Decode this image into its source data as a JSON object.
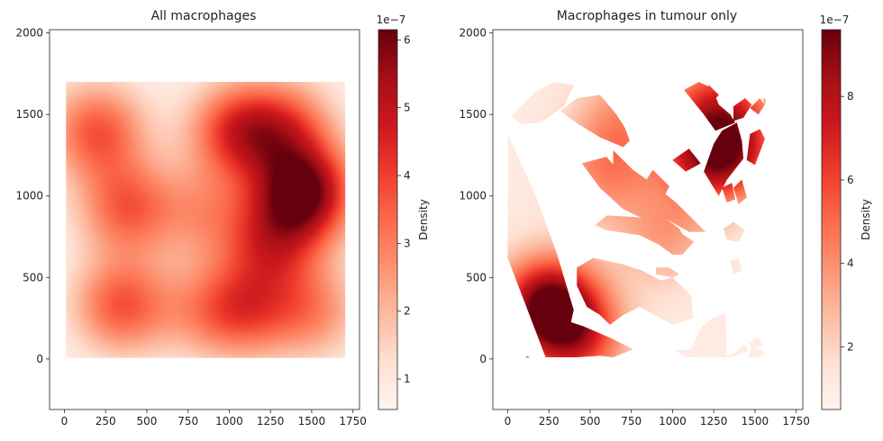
{
  "colors": {
    "colormap": [
      "#fff5f0",
      "#fee0d2",
      "#fcbba1",
      "#fc9272",
      "#fb6a4a",
      "#ef3b2c",
      "#cb181d",
      "#a50f15",
      "#67000d"
    ],
    "frame": "#222222"
  },
  "chart_data": [
    {
      "type": "heatmap",
      "title": "All macrophages",
      "xlim": [
        -90,
        1790
      ],
      "ylim": [
        -310,
        2020
      ],
      "x_ticks": [
        {
          "value": 0,
          "label": "0"
        },
        {
          "value": 250,
          "label": "250"
        },
        {
          "value": 500,
          "label": "500"
        },
        {
          "value": 750,
          "label": "750"
        },
        {
          "value": 1000,
          "label": "1000"
        },
        {
          "value": 1250,
          "label": "1250"
        },
        {
          "value": 1500,
          "label": "1500"
        },
        {
          "value": 1750,
          "label": "1750"
        }
      ],
      "y_ticks": [
        {
          "value": 0,
          "label": "0"
        },
        {
          "value": 500,
          "label": "500"
        },
        {
          "value": 1000,
          "label": "1000"
        },
        {
          "value": 1500,
          "label": "1500"
        },
        {
          "value": 2000,
          "label": "2000"
        }
      ],
      "extent": {
        "x": [
          10,
          1700
        ],
        "y": [
          10,
          1700
        ]
      },
      "mask": "full",
      "density_base": 0.6,
      "hotspots": [
        {
          "x": 1450,
          "y": 1020,
          "value": 5.4
        },
        {
          "x": 1050,
          "y": 1400,
          "value": 3.4
        },
        {
          "x": 1350,
          "y": 1420,
          "value": 2.6
        },
        {
          "x": 1250,
          "y": 700,
          "value": 2.8
        },
        {
          "x": 1100,
          "y": 300,
          "value": 2.5
        },
        {
          "x": 1500,
          "y": 300,
          "value": 2.1
        },
        {
          "x": 200,
          "y": 1400,
          "value": 3.0
        },
        {
          "x": 380,
          "y": 930,
          "value": 2.8
        },
        {
          "x": 350,
          "y": 330,
          "value": 3.0
        },
        {
          "x": 850,
          "y": 900,
          "value": 1.6
        },
        {
          "x": 850,
          "y": 300,
          "value": 1.4
        }
      ],
      "colorbar": {
        "label": "Density",
        "exponent": "1e−7",
        "range": [
          0.55,
          6.15
        ],
        "ticks": [
          {
            "value": 1,
            "label": "1"
          },
          {
            "value": 2,
            "label": "2"
          },
          {
            "value": 3,
            "label": "3"
          },
          {
            "value": 4,
            "label": "4"
          },
          {
            "value": 5,
            "label": "5"
          },
          {
            "value": 6,
            "label": "6"
          }
        ]
      }
    },
    {
      "type": "heatmap",
      "title": "Macrophages in tumour only",
      "xlim": [
        -90,
        1790
      ],
      "ylim": [
        -310,
        2020
      ],
      "x_ticks": [
        {
          "value": 0,
          "label": "0"
        },
        {
          "value": 250,
          "label": "250"
        },
        {
          "value": 500,
          "label": "500"
        },
        {
          "value": 750,
          "label": "750"
        },
        {
          "value": 1000,
          "label": "1000"
        },
        {
          "value": 1250,
          "label": "1250"
        },
        {
          "value": 1500,
          "label": "1500"
        },
        {
          "value": 1750,
          "label": "1750"
        }
      ],
      "y_ticks": [
        {
          "value": 0,
          "label": "0"
        },
        {
          "value": 500,
          "label": "500"
        },
        {
          "value": 1000,
          "label": "1000"
        },
        {
          "value": 1500,
          "label": "1500"
        },
        {
          "value": 2000,
          "label": "2000"
        }
      ],
      "extent": {
        "x": [
          0,
          1560
        ],
        "y": [
          10,
          1700
        ]
      },
      "mask": "tumour",
      "density_base": 1.0,
      "hotspots": [
        {
          "x": 250,
          "y": 330,
          "value": 8.5
        },
        {
          "x": 420,
          "y": 130,
          "value": 4.5
        },
        {
          "x": 1230,
          "y": 1250,
          "value": 6.2
        },
        {
          "x": 1280,
          "y": 1600,
          "value": 4.0
        },
        {
          "x": 700,
          "y": 1500,
          "value": 2.5
        },
        {
          "x": 600,
          "y": 1150,
          "value": 3.0
        },
        {
          "x": 950,
          "y": 750,
          "value": 2.5
        },
        {
          "x": 1400,
          "y": 1300,
          "value": 3.0
        }
      ],
      "regions": [
        [
          [
            0,
            1380
          ],
          [
            170,
            1000
          ],
          [
            300,
            640
          ],
          [
            400,
            300
          ],
          [
            340,
            30
          ],
          [
            230,
            10
          ],
          [
            0,
            620
          ]
        ],
        [
          [
            240,
            10
          ],
          [
            420,
            10
          ],
          [
            560,
            20
          ],
          [
            640,
            10
          ],
          [
            760,
            60
          ],
          [
            620,
            130
          ],
          [
            460,
            200
          ],
          [
            340,
            240
          ]
        ],
        [
          [
            420,
            560
          ],
          [
            520,
            620
          ],
          [
            700,
            580
          ],
          [
            820,
            540
          ],
          [
            930,
            480
          ],
          [
            1000,
            500
          ],
          [
            1110,
            390
          ],
          [
            1130,
            250
          ],
          [
            1000,
            210
          ],
          [
            800,
            320
          ],
          [
            700,
            270
          ],
          [
            620,
            210
          ],
          [
            560,
            270
          ],
          [
            480,
            320
          ],
          [
            420,
            450
          ]
        ],
        [
          [
            530,
            820
          ],
          [
            600,
            790
          ],
          [
            800,
            760
          ],
          [
            920,
            700
          ],
          [
            1000,
            640
          ],
          [
            1060,
            640
          ],
          [
            1130,
            720
          ],
          [
            960,
            830
          ],
          [
            780,
            870
          ],
          [
            600,
            880
          ]
        ],
        [
          [
            900,
            520
          ],
          [
            1000,
            500
          ],
          [
            1040,
            520
          ],
          [
            980,
            560
          ],
          [
            900,
            560
          ]
        ],
        [
          [
            450,
            1200
          ],
          [
            600,
            1240
          ],
          [
            800,
            1000
          ],
          [
            960,
            860
          ],
          [
            1040,
            800
          ],
          [
            1080,
            730
          ],
          [
            990,
            750
          ],
          [
            880,
            830
          ],
          [
            700,
            920
          ],
          [
            560,
            1050
          ]
        ],
        [
          [
            640,
            1280
          ],
          [
            760,
            1160
          ],
          [
            900,
            1060
          ],
          [
            1020,
            960
          ],
          [
            1140,
            840
          ],
          [
            1200,
            780
          ],
          [
            1100,
            780
          ],
          [
            960,
            860
          ],
          [
            790,
            990
          ],
          [
            640,
            1150
          ]
        ],
        [
          [
            320,
            1520
          ],
          [
            420,
            1600
          ],
          [
            560,
            1620
          ],
          [
            660,
            1500
          ],
          [
            710,
            1420
          ],
          [
            740,
            1340
          ],
          [
            700,
            1300
          ],
          [
            560,
            1360
          ],
          [
            430,
            1440
          ]
        ],
        [
          [
            810,
            1050
          ],
          [
            880,
            1160
          ],
          [
            980,
            1060
          ],
          [
            940,
            980
          ]
        ],
        [
          [
            1000,
            1220
          ],
          [
            1100,
            1290
          ],
          [
            1170,
            1200
          ],
          [
            1080,
            1150
          ]
        ],
        [
          [
            1070,
            1650
          ],
          [
            1160,
            1700
          ],
          [
            1240,
            1660
          ],
          [
            1280,
            1560
          ],
          [
            1350,
            1500
          ],
          [
            1380,
            1450
          ],
          [
            1260,
            1400
          ],
          [
            1190,
            1500
          ]
        ],
        [
          [
            1190,
            1150
          ],
          [
            1250,
            1320
          ],
          [
            1300,
            1400
          ],
          [
            1390,
            1450
          ],
          [
            1420,
            1340
          ],
          [
            1430,
            1230
          ],
          [
            1330,
            1100
          ],
          [
            1280,
            1000
          ]
        ],
        [
          [
            1370,
            1550
          ],
          [
            1440,
            1600
          ],
          [
            1480,
            1560
          ],
          [
            1430,
            1480
          ],
          [
            1370,
            1460
          ]
        ],
        [
          [
            1470,
            1540
          ],
          [
            1530,
            1600
          ],
          [
            1560,
            1560
          ],
          [
            1520,
            1500
          ]
        ],
        [
          [
            1450,
            1220
          ],
          [
            1470,
            1380
          ],
          [
            1530,
            1410
          ],
          [
            1560,
            1350
          ],
          [
            1500,
            1190
          ]
        ],
        [
          [
            1370,
            1050
          ],
          [
            1420,
            1100
          ],
          [
            1450,
            990
          ],
          [
            1400,
            950
          ]
        ],
        [
          [
            1300,
            1050
          ],
          [
            1360,
            1080
          ],
          [
            1380,
            980
          ],
          [
            1330,
            960
          ]
        ],
        [
          [
            1310,
            800
          ],
          [
            1370,
            840
          ],
          [
            1440,
            790
          ],
          [
            1400,
            720
          ],
          [
            1330,
            730
          ]
        ],
        [
          [
            1350,
            600
          ],
          [
            1400,
            620
          ],
          [
            1420,
            540
          ],
          [
            1370,
            520
          ]
        ],
        [
          [
            1020,
            50
          ],
          [
            1110,
            60
          ],
          [
            1180,
            200
          ],
          [
            1240,
            250
          ],
          [
            1320,
            280
          ],
          [
            1330,
            10
          ],
          [
            1080,
            10
          ]
        ],
        [
          [
            1310,
            10
          ],
          [
            1380,
            40
          ],
          [
            1440,
            90
          ],
          [
            1460,
            50
          ],
          [
            1360,
            10
          ]
        ],
        [
          [
            1460,
            10
          ],
          [
            1530,
            10
          ],
          [
            1560,
            40
          ],
          [
            1480,
            80
          ]
        ],
        [
          [
            1460,
            100
          ],
          [
            1520,
            130
          ],
          [
            1550,
            80
          ],
          [
            1490,
            60
          ]
        ],
        [
          [
            20,
            1490
          ],
          [
            170,
            1640
          ],
          [
            280,
            1700
          ],
          [
            400,
            1680
          ],
          [
            340,
            1550
          ],
          [
            200,
            1450
          ],
          [
            80,
            1440
          ]
        ],
        [
          [
            1170,
            1600
          ],
          [
            1220,
            1680
          ],
          [
            1280,
            1620
          ],
          [
            1230,
            1560
          ]
        ],
        [
          [
            1550,
            1600
          ],
          [
            1570,
            1590
          ],
          [
            1560,
            1560
          ]
        ],
        [
          [
            100,
            0
          ],
          [
            140,
            0
          ],
          [
            120,
            20
          ]
        ]
      ],
      "colorbar": {
        "label": "Density",
        "exponent": "1e−7",
        "range": [
          0.5,
          9.6
        ],
        "ticks": [
          {
            "value": 2,
            "label": "2"
          },
          {
            "value": 4,
            "label": "4"
          },
          {
            "value": 6,
            "label": "6"
          },
          {
            "value": 8,
            "label": "8"
          }
        ]
      }
    }
  ]
}
